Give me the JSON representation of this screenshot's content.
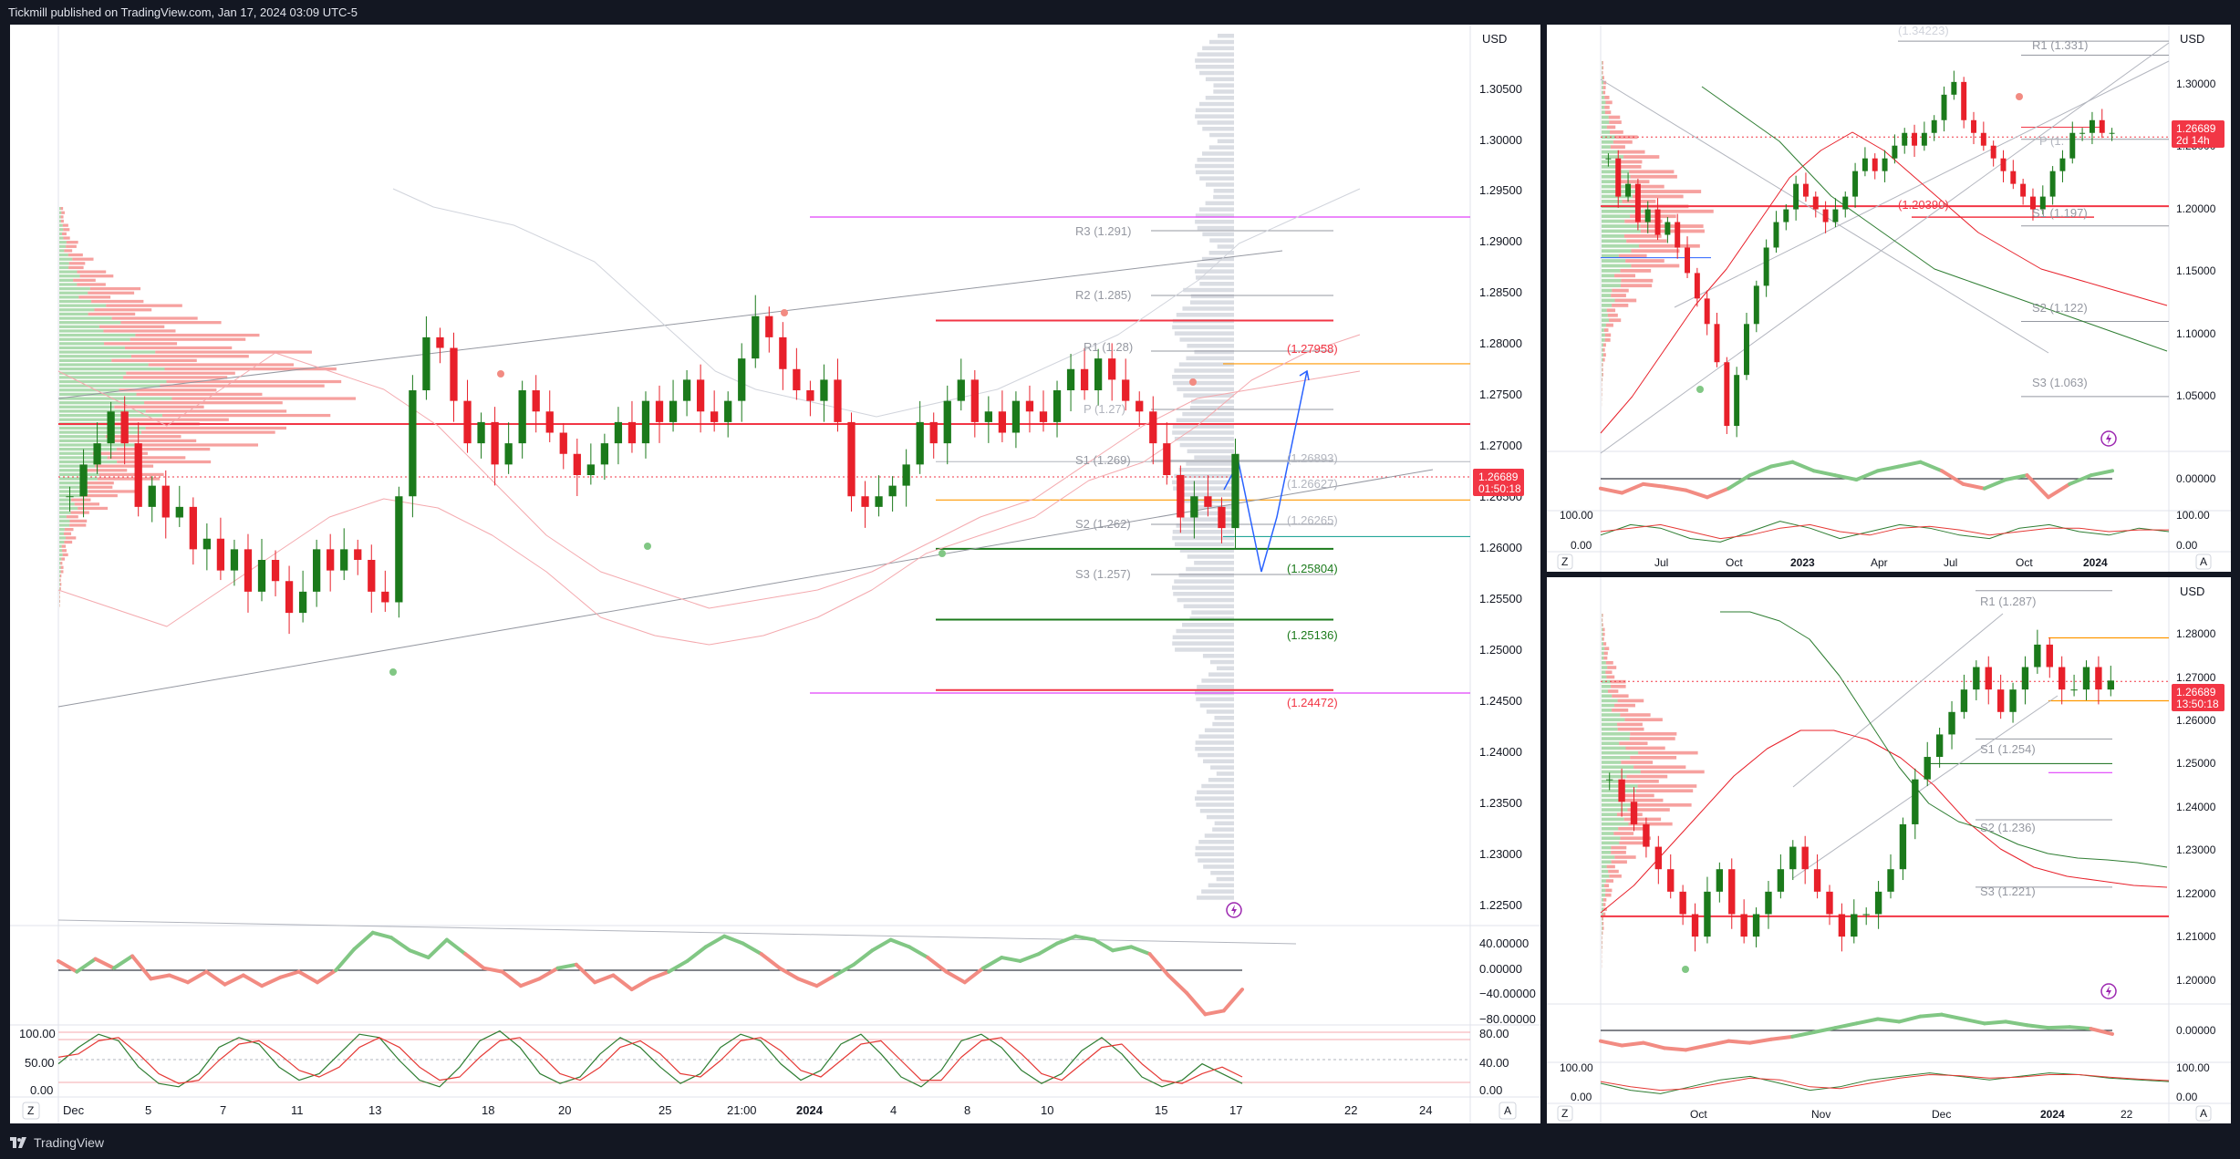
{
  "header": {
    "publisher": "Tickmill published on TradingView.com, Jan 17, 2024 03:09 UTC-5"
  },
  "footer": {
    "brand": "TradingView"
  },
  "colors": {
    "bull": "#089981",
    "bear": "#f23645",
    "candle_up": "#1b7a1b",
    "candle_down": "#e8202a",
    "pivot": "#b2b5be",
    "magenta": "#e040fb",
    "orange": "#ff9800",
    "blue_path": "#2962ff"
  },
  "main_chart": {
    "currency": "USD",
    "price_axis": [
      "1.30500",
      "1.30000",
      "1.29500",
      "1.29000",
      "1.28500",
      "1.28000",
      "1.27500",
      "1.27000",
      "1.26500",
      "1.26000",
      "1.25500",
      "1.25000",
      "1.24500",
      "1.24000",
      "1.23500",
      "1.23000",
      "1.22500"
    ],
    "price_badge": {
      "price": "1.26689",
      "countdown": "01:50:18"
    },
    "pivot_labels": [
      "R3 (1.291)",
      "R2 (1.285)",
      "R1 (1.28)",
      "P (1.27)",
      "S1 (1.269)",
      "S2 (1.262)",
      "S3 (1.257)"
    ],
    "level_labels": [
      "(1.27958)",
      "(1.26627)",
      "(1.26265)",
      "(1.25804)",
      "(1.25136)",
      "(1.24472)",
      "(1.26893)"
    ],
    "time_axis": [
      "Dec",
      "5",
      "7",
      "11",
      "13",
      "18",
      "20",
      "25",
      "21:00",
      "2024",
      "4",
      "8",
      "10",
      "15",
      "17",
      "22",
      "24"
    ],
    "osc1_axis": [
      "40.00000",
      "0.00000",
      "−40.00000",
      "−80.00000"
    ],
    "osc2_axis": [
      "80.00",
      "40.00",
      "0.00"
    ],
    "osc2_left_axis": [
      "100.00",
      "50.00",
      "0.00"
    ],
    "corner_left": "Z",
    "corner_right": "A",
    "lightning_icon": "lightning-icon"
  },
  "chart_data": [
    {
      "type": "candlestick",
      "title": "",
      "currency": "USD",
      "x_range": [
        "Dec 1, 2023",
        "Jan 24, 2024"
      ],
      "ylim": [
        1.2225,
        1.3075
      ],
      "horizontal_levels": [
        1.27958,
        1.26627,
        1.26265,
        1.25804,
        1.25136,
        1.24472,
        1.26893
      ],
      "pivots": {
        "R3": 1.291,
        "R2": 1.285,
        "R1": 1.28,
        "P": 1.27,
        "S1": 1.269,
        "S2": 1.262,
        "S3": 1.257
      },
      "last_price": 1.26689,
      "closes": [
        1.263,
        1.266,
        1.268,
        1.271,
        1.268,
        1.262,
        1.264,
        1.261,
        1.262,
        1.258,
        1.259,
        1.256,
        1.258,
        1.254,
        1.257,
        1.255,
        1.252,
        1.254,
        1.258,
        1.256,
        1.258,
        1.257,
        1.254,
        1.253,
        1.263,
        1.273,
        1.278,
        1.277,
        1.272,
        1.268,
        1.27,
        1.266,
        1.268,
        1.273,
        1.271,
        1.269,
        1.267,
        1.265,
        1.266,
        1.268,
        1.27,
        1.268,
        1.272,
        1.27,
        1.272,
        1.274,
        1.271,
        1.27,
        1.272,
        1.276,
        1.28,
        1.278,
        1.275,
        1.273,
        1.272,
        1.274,
        1.27,
        1.263,
        1.262,
        1.263,
        1.264,
        1.266,
        1.27,
        1.268,
        1.272,
        1.274,
        1.27,
        1.271,
        1.269,
        1.272,
        1.271,
        1.27,
        1.273,
        1.275,
        1.273,
        1.276,
        1.274,
        1.272,
        1.271,
        1.268,
        1.265,
        1.261,
        1.263,
        1.262,
        1.26,
        1.267
      ]
    },
    {
      "type": "line",
      "title": "",
      "ylim": [
        -85,
        55
      ],
      "x_range": [
        "Dec 1, 2023",
        "Jan 24, 2024"
      ],
      "values": [
        5,
        -10,
        8,
        -5,
        12,
        -20,
        -15,
        -25,
        -10,
        -28,
        -15,
        -30,
        -18,
        -10,
        -25,
        -8,
        22,
        45,
        38,
        20,
        10,
        35,
        15,
        -5,
        -10,
        -30,
        -20,
        -5,
        0,
        -25,
        -15,
        -35,
        -20,
        -10,
        5,
        25,
        40,
        30,
        15,
        -5,
        -20,
        -30,
        -15,
        0,
        20,
        35,
        25,
        10,
        -10,
        -25,
        -5,
        10,
        5,
        15,
        30,
        40,
        35,
        20,
        25,
        15,
        -15,
        -40,
        -70,
        -65,
        -35
      ]
    },
    {
      "type": "line",
      "title": "",
      "ylim": [
        0,
        100
      ],
      "x_range": [
        "Dec 1, 2023",
        "Jan 24, 2024"
      ],
      "series": [
        {
          "values": [
            45,
            70,
            90,
            80,
            40,
            15,
            10,
            30,
            70,
            85,
            75,
            40,
            20,
            30,
            60,
            90,
            85,
            50,
            20,
            10,
            40,
            80,
            95,
            70,
            30,
            15,
            25,
            60,
            85,
            70,
            40,
            15,
            30,
            70,
            90,
            80,
            45,
            20,
            35,
            75,
            90,
            60,
            25,
            10,
            35,
            80,
            90,
            70,
            35,
            15,
            30,
            65,
            85,
            60,
            25,
            10,
            20,
            45,
            30,
            15
          ]
        },
        {
          "values": [
            55,
            60,
            80,
            85,
            60,
            30,
            15,
            20,
            50,
            75,
            80,
            60,
            35,
            25,
            40,
            70,
            85,
            70,
            40,
            20,
            25,
            55,
            80,
            85,
            60,
            30,
            20,
            40,
            70,
            80,
            60,
            30,
            25,
            50,
            80,
            85,
            65,
            35,
            25,
            50,
            75,
            80,
            50,
            20,
            20,
            55,
            80,
            85,
            60,
            30,
            20,
            45,
            70,
            75,
            45,
            20,
            15,
            30,
            40,
            25
          ]
        }
      ]
    },
    {
      "type": "candlestick",
      "title": "",
      "time_axis": [
        "Jul",
        "Oct",
        "2023",
        "Apr",
        "Jul",
        "Oct",
        "2024"
      ],
      "price_axis": [
        "1.30000",
        "1.25000",
        "1.20000",
        "1.15000",
        "1.10000",
        "1.05000"
      ],
      "pivots": {
        "R1": 1.331,
        "P": 1.265,
        "S1": 1.197,
        "S2": 1.122,
        "S3": 1.063
      },
      "level": 1.2039,
      "last_price": 1.26689,
      "closes": [
        1.25,
        1.22,
        1.23,
        1.2,
        1.21,
        1.19,
        1.2,
        1.18,
        1.16,
        1.14,
        1.12,
        1.09,
        1.04,
        1.08,
        1.12,
        1.15,
        1.18,
        1.2,
        1.21,
        1.23,
        1.22,
        1.21,
        1.2,
        1.21,
        1.22,
        1.24,
        1.25,
        1.24,
        1.25,
        1.26,
        1.27,
        1.26,
        1.27,
        1.28,
        1.3,
        1.31,
        1.28,
        1.27,
        1.26,
        1.25,
        1.24,
        1.23,
        1.22,
        1.21,
        1.22,
        1.24,
        1.25,
        1.27,
        1.27,
        1.28,
        1.27,
        1.27
      ]
    },
    {
      "type": "candlestick",
      "title": "",
      "time_axis": [
        "Oct",
        "Nov",
        "Dec",
        "2024",
        "22"
      ],
      "price_axis": [
        "1.28000",
        "1.27000",
        "1.26000",
        "1.25000",
        "1.24000",
        "1.23000",
        "1.22000",
        "1.21000",
        "1.20000"
      ],
      "pivots": {
        "R1": 1.287,
        "S1": 1.254,
        "S2": 1.236,
        "S3": 1.221
      },
      "last_price": 1.26689,
      "countdown": "13:50:18",
      "closes": [
        1.245,
        1.24,
        1.235,
        1.23,
        1.225,
        1.22,
        1.215,
        1.21,
        1.22,
        1.225,
        1.215,
        1.21,
        1.215,
        1.22,
        1.225,
        1.23,
        1.225,
        1.22,
        1.215,
        1.21,
        1.215,
        1.215,
        1.22,
        1.225,
        1.235,
        1.245,
        1.25,
        1.255,
        1.26,
        1.265,
        1.27,
        1.265,
        1.26,
        1.265,
        1.27,
        1.275,
        1.27,
        1.265,
        1.265,
        1.27,
        1.265,
        1.267
      ]
    }
  ],
  "top_right_chart": {
    "currency": "USD",
    "price_badge": {
      "price": "1.26689",
      "countdown": "2d 14h"
    },
    "pivot_labels": [
      "R1 (1.331)",
      "P (1.",
      "S1 (1.197)",
      "S2 (1.122)",
      "S3 (1.063)",
      "(1.34223)"
    ],
    "level_label": "(1.20390)",
    "price_axis": [
      "1.30000",
      "1.25000",
      "1.20000",
      "1.15000",
      "1.10000",
      "1.05000"
    ],
    "osc1_axis": [
      "0.00000"
    ],
    "osc2_axis": [
      "100.00",
      "0.00"
    ],
    "time_axis": [
      "Jul",
      "Oct",
      "2023",
      "Apr",
      "Jul",
      "Oct",
      "2024"
    ],
    "corner_left": "Z",
    "corner_right": "A"
  },
  "bottom_right_chart": {
    "currency": "USD",
    "price_badge": {
      "price": "1.26689",
      "countdown": "13:50:18"
    },
    "pivot_labels": [
      "R1 (1.287)",
      "S1 (1.254)",
      "S2 (1.236)",
      "S3 (1.221)"
    ],
    "price_axis": [
      "1.28000",
      "1.27000",
      "1.26000",
      "1.25000",
      "1.24000",
      "1.23000",
      "1.22000",
      "1.21000",
      "1.20000"
    ],
    "osc1_axis": [
      "0.00000"
    ],
    "osc2_axis": [
      "100.00",
      "0.00"
    ],
    "time_axis": [
      "Oct",
      "Nov",
      "Dec",
      "2024",
      "22"
    ],
    "corner_left": "Z",
    "corner_right": "A"
  }
}
